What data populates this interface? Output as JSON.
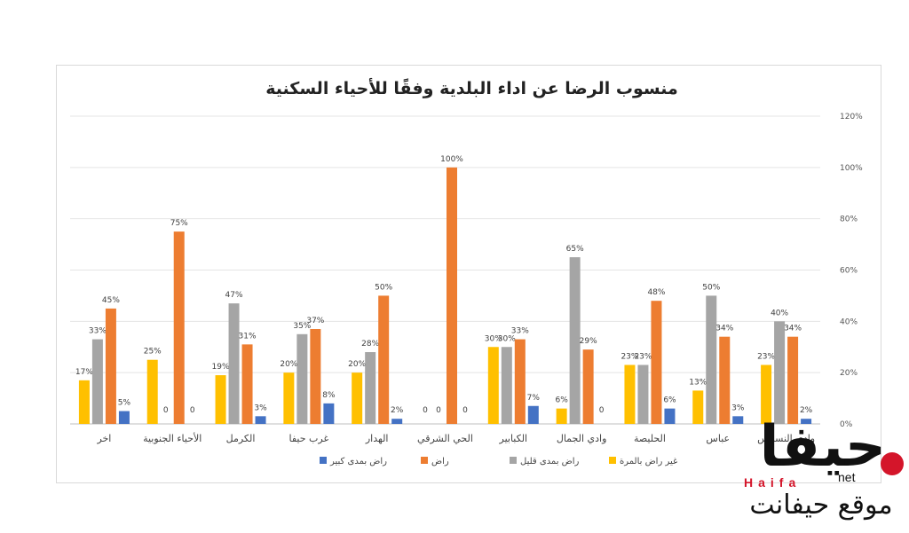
{
  "chart_data": {
    "type": "bar",
    "title": "منسوب الرضا عن اداء البلدية وفقًا للأحياء السكنية",
    "categories": [
      "وادي النسناس",
      "عباس",
      "الحليصة",
      "وادي الجمال",
      "الكبابير",
      "الحي الشرقي",
      "الهدار",
      "غرب حيفا",
      "الكرمل",
      "الأحياء الجنوبية",
      "اخر"
    ],
    "series": [
      {
        "name": "غير راض بالمرة",
        "color": "#ffc000",
        "values": [
          23,
          13,
          23,
          6,
          30,
          0,
          20,
          20,
          19,
          25,
          17
        ],
        "labels": [
          "23%",
          "13%",
          "23%",
          "6%",
          "30%",
          "0",
          "20%",
          "20%",
          "19%",
          "25%",
          "17%"
        ]
      },
      {
        "name": "راض بمدى قليل",
        "color": "#a5a5a5",
        "values": [
          40,
          50,
          23,
          65,
          30,
          0,
          28,
          35,
          47,
          null,
          33
        ],
        "labels": [
          "40%",
          "50%",
          "23%",
          "65%",
          "30%",
          "0",
          "28%",
          "35%",
          "47%",
          "0",
          "33%"
        ]
      },
      {
        "name": "راض",
        "color": "#ed7d31",
        "values": [
          34,
          34,
          48,
          29,
          33,
          100,
          50,
          37,
          31,
          75,
          45
        ],
        "labels": [
          "34%",
          "34%",
          "48%",
          "29%",
          "33%",
          "100%",
          "50%",
          "37%",
          "31%",
          "75%",
          "45%"
        ]
      },
      {
        "name": "راض بمدى كبير",
        "color": "#4472c4",
        "values": [
          2,
          3,
          6,
          null,
          7,
          null,
          2,
          8,
          3,
          null,
          5
        ],
        "labels": [
          "2%",
          "3%",
          "6%",
          "0",
          "7%",
          "0",
          "2%",
          "8%",
          "3%",
          "0",
          "5%"
        ]
      }
    ],
    "legend_order": [
      "راض بمدى كبير",
      "راض",
      "راض بمدى قليل",
      "غير راض بالمرة"
    ],
    "ylim": [
      0,
      120
    ],
    "y_ticks": [
      "0%",
      "20%",
      "40%",
      "60%",
      "80%",
      "100%",
      "120%"
    ],
    "y_axis_position": "right",
    "grid": true,
    "legend_position": "bottom"
  },
  "logo": {
    "main": "حيفا",
    "latin": "Haifa",
    "net": "net",
    "subtitle": "موقع حيفانت"
  }
}
